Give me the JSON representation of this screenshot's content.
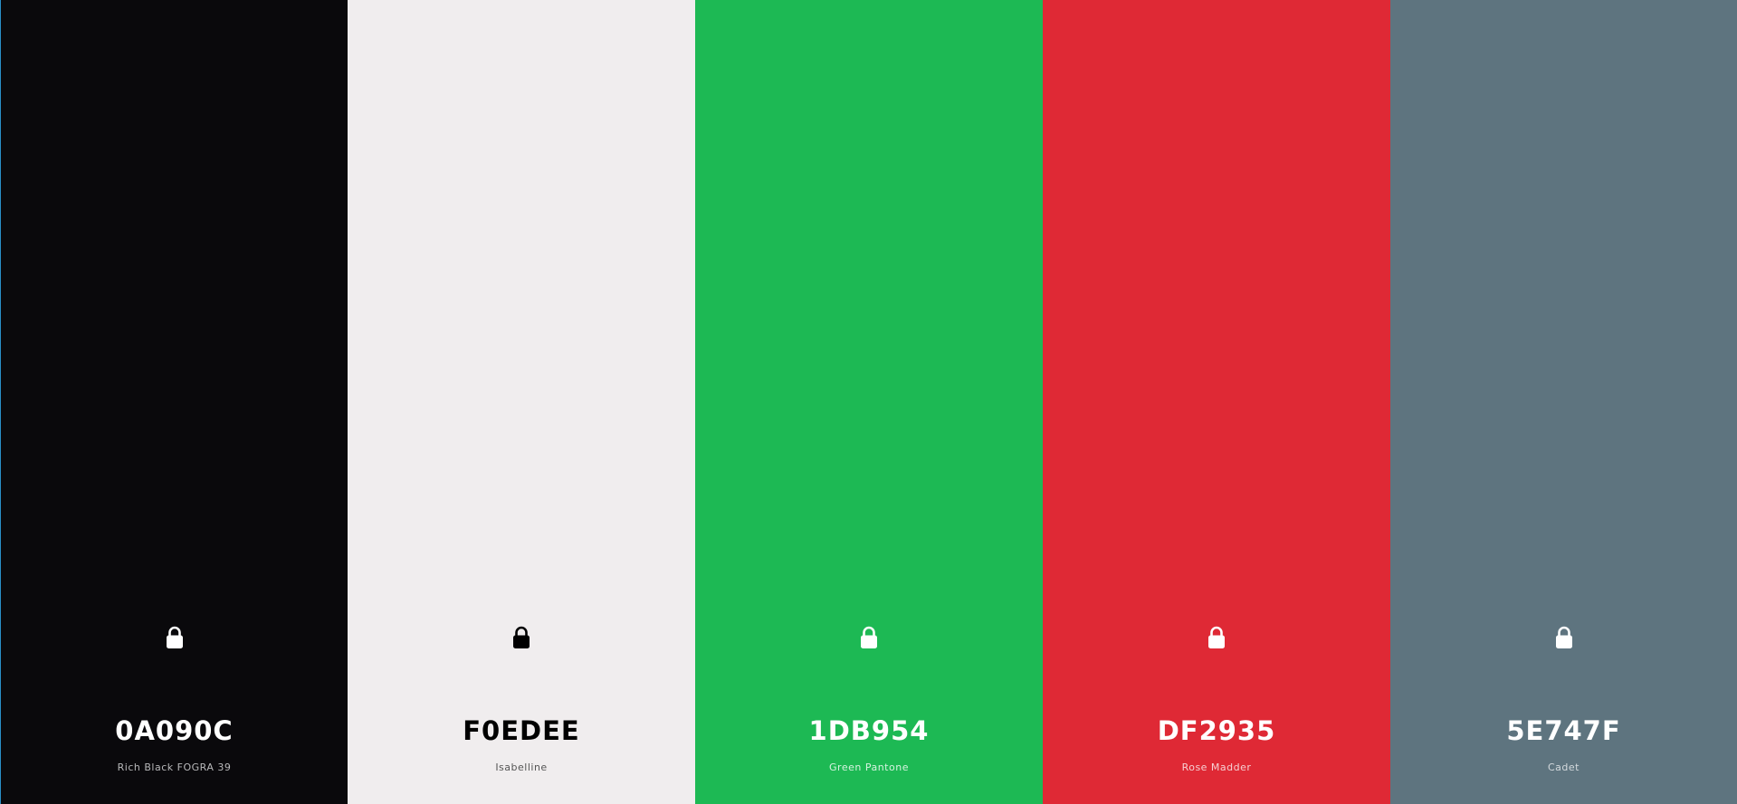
{
  "palette": {
    "colors": [
      {
        "hex": "0A090C",
        "name": "Rich Black FOGRA 39",
        "background": "#0A090C",
        "text_color": "#FFFFFF",
        "name_color": "#B8B8BA",
        "lock_color": "#FFFFFF",
        "lock_icon": "lock-icon"
      },
      {
        "hex": "F0EDEE",
        "name": "Isabelline",
        "background": "#F0EDEE",
        "text_color": "#000000",
        "name_color": "#555555",
        "lock_color": "#000000",
        "lock_icon": "lock-icon"
      },
      {
        "hex": "1DB954",
        "name": "Green Pantone",
        "background": "#1DB954",
        "text_color": "#FFFFFF",
        "name_color": "#D6F3E0",
        "lock_color": "#FFFFFF",
        "lock_icon": "lock-icon"
      },
      {
        "hex": "DF2935",
        "name": "Rose Madder",
        "background": "#DF2935",
        "text_color": "#FFFFFF",
        "name_color": "#F6D0D3",
        "lock_color": "#FFFFFF",
        "lock_icon": "lock-icon"
      },
      {
        "hex": "5E747F",
        "name": "Cadet",
        "background": "#5E747F",
        "text_color": "#FFFFFF",
        "name_color": "#D4DADD",
        "lock_color": "#FFFFFF",
        "lock_icon": "lock-icon"
      }
    ]
  }
}
